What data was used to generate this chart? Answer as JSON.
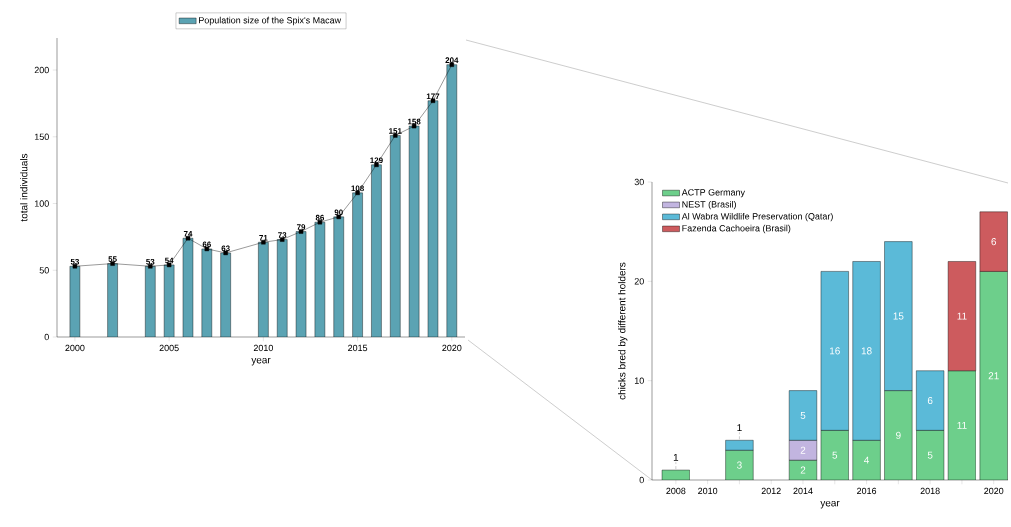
{
  "chart_data": [
    {
      "type": "bar",
      "xlabel": "year",
      "ylabel": "total individuals",
      "x": [
        2000,
        2002,
        2004,
        2005,
        2006,
        2007,
        2008,
        2010,
        2011,
        2012,
        2013,
        2014,
        2015,
        2016,
        2017,
        2018,
        2019,
        2020
      ],
      "series": [
        {
          "name": "Population size of the Spix's Macaw",
          "color": "#5ba3b3",
          "values": [
            53,
            55,
            53,
            54,
            74,
            66,
            63,
            71,
            73,
            79,
            86,
            90,
            108,
            129,
            151,
            158,
            177,
            204
          ]
        },
        {
          "type": "line",
          "color": "#000000",
          "values": [
            53,
            55,
            53,
            54,
            74,
            66,
            63,
            71,
            73,
            79,
            86,
            90,
            108,
            129,
            151,
            158,
            177,
            204
          ],
          "value_labels": [
            "53",
            "55",
            "53",
            "54",
            "74",
            "66",
            "63",
            "71",
            "73",
            "79",
            "86",
            "90",
            "108",
            "129",
            "151",
            "158",
            "177",
            "204"
          ]
        }
      ],
      "xlim": [
        1999.05,
        2020.7
      ],
      "ylim": [
        0,
        224
      ],
      "xticks": [
        2000,
        2005,
        2010,
        2015,
        2020
      ],
      "yticks": [
        0,
        50,
        100,
        150,
        200
      ],
      "legend": "top",
      "marker": "square"
    },
    {
      "type": "bar",
      "stacked": true,
      "xlabel": "year",
      "ylabel": "chicks bred by different holders",
      "categories": [
        "2008",
        "2010",
        null,
        "2012",
        "2014",
        null,
        "2016",
        null,
        "2018",
        null,
        "2020"
      ],
      "series": [
        {
          "name": "ACTP Germany",
          "color": "#6dcf8b",
          "values": [
            1,
            null,
            3,
            null,
            2,
            5,
            4,
            9,
            5,
            11,
            21
          ]
        },
        {
          "name": "NEST (Brasil)",
          "color": "#c2b5e0",
          "values": [
            null,
            null,
            null,
            null,
            2,
            null,
            null,
            null,
            null,
            null,
            null
          ]
        },
        {
          "name": "Al Wabra Wildlife Preservation (Qatar)",
          "color": "#5bbad8",
          "values": [
            null,
            null,
            1,
            null,
            5,
            16,
            18,
            15,
            6,
            null,
            null
          ]
        },
        {
          "name": "Fazenda Cachoeira (Brasil)",
          "color": "#cd5b5e",
          "values": [
            null,
            null,
            null,
            null,
            null,
            null,
            null,
            null,
            null,
            11,
            6
          ]
        }
      ],
      "ylim": [
        0,
        30
      ],
      "yticks": [
        0,
        10,
        20,
        30
      ],
      "data_labels": true,
      "legend": "top left"
    }
  ]
}
